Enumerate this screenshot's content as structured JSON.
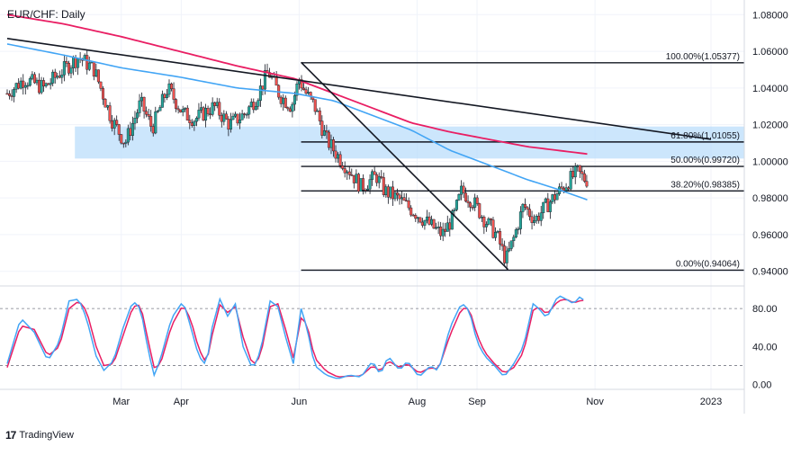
{
  "chart_data": {
    "type": "candlestick",
    "title": "EUR/CHF: Daily",
    "price_axis": {
      "ylim": [
        0.932,
        1.088
      ],
      "ticks": [
        "1.08000",
        "1.06000",
        "1.04000",
        "1.02000",
        "1.00000",
        "0.98000",
        "0.96000",
        "0.94000"
      ],
      "tick_values": [
        1.08,
        1.06,
        1.04,
        1.02,
        1.0,
        0.98,
        0.96,
        0.94
      ]
    },
    "time_axis": {
      "labels": [
        "Mar",
        "Apr",
        "Jun",
        "Aug",
        "Sep",
        "Nov",
        "2023"
      ],
      "label_days": [
        60,
        91,
        152,
        213,
        244,
        305,
        365
      ],
      "start": "2022-01-01"
    },
    "colors": {
      "up": "#26a69a",
      "down": "#ef5350",
      "ma_fast": "#42a5f5",
      "ma_slow": "#e91e63",
      "trendline": "#131722",
      "zone": "#bbdefb",
      "stoch_k": "#42a5f5",
      "stoch_d": "#e91e63"
    },
    "candles_path": [
      [
        1,
        1.037
      ],
      [
        10,
        1.045
      ],
      [
        20,
        1.04
      ],
      [
        28,
        1.048
      ],
      [
        38,
        1.057
      ],
      [
        46,
        1.05
      ],
      [
        55,
        1.023
      ],
      [
        62,
        1.01
      ],
      [
        70,
        1.032
      ],
      [
        76,
        1.018
      ],
      [
        84,
        1.04
      ],
      [
        92,
        1.026
      ],
      [
        98,
        1.023
      ],
      [
        108,
        1.03
      ],
      [
        116,
        1.02
      ],
      [
        124,
        1.026
      ],
      [
        130,
        1.035
      ],
      [
        136,
        1.049
      ],
      [
        142,
        1.036
      ],
      [
        148,
        1.03
      ],
      [
        152,
        1.045
      ],
      [
        155,
        1.038
      ],
      [
        160,
        1.03
      ],
      [
        166,
        1.012
      ],
      [
        172,
        1.003
      ],
      [
        178,
        0.995
      ],
      [
        184,
        0.986
      ],
      [
        192,
        0.992
      ],
      [
        196,
        0.984
      ],
      [
        204,
        0.979
      ],
      [
        212,
        0.972
      ],
      [
        220,
        0.965
      ],
      [
        226,
        0.96
      ],
      [
        232,
        0.97
      ],
      [
        236,
        0.984
      ],
      [
        242,
        0.978
      ],
      [
        248,
        0.968
      ],
      [
        254,
        0.96
      ],
      [
        259,
        0.946
      ],
      [
        263,
        0.958
      ],
      [
        268,
        0.976
      ],
      [
        274,
        0.968
      ],
      [
        280,
        0.976
      ],
      [
        286,
        0.983
      ],
      [
        292,
        0.99
      ],
      [
        296,
        0.994
      ],
      [
        300,
        0.99
      ]
    ],
    "ma_fast_points": [
      [
        1,
        1.064
      ],
      [
        30,
        1.058
      ],
      [
        60,
        1.051
      ],
      [
        90,
        1.046
      ],
      [
        120,
        1.04
      ],
      [
        150,
        1.037
      ],
      [
        170,
        1.033
      ],
      [
        190,
        1.025
      ],
      [
        210,
        1.017
      ],
      [
        230,
        1.006
      ],
      [
        250,
        0.998
      ],
      [
        270,
        0.99
      ],
      [
        285,
        0.985
      ],
      [
        301,
        0.979
      ]
    ],
    "ma_slow_points": [
      [
        1,
        1.08
      ],
      [
        30,
        1.075
      ],
      [
        60,
        1.068
      ],
      [
        90,
        1.06
      ],
      [
        120,
        1.052
      ],
      [
        150,
        1.045
      ],
      [
        170,
        1.037
      ],
      [
        190,
        1.029
      ],
      [
        210,
        1.021
      ],
      [
        230,
        1.016
      ],
      [
        250,
        1.012
      ],
      [
        270,
        1.008
      ],
      [
        301,
        1.004
      ]
    ],
    "trendlines": [
      {
        "from": [
          1,
          1.067
        ],
        "to": [
          365,
          1.012
        ]
      },
      {
        "from": [
          153,
          1.054
        ],
        "to": [
          260,
          0.941
        ]
      }
    ],
    "fibonacci": {
      "start_day": 153,
      "levels": [
        {
          "label": "100.00%(1.05377)",
          "value": 1.05377
        },
        {
          "label": "61.80%(1.01055)",
          "value": 1.01055
        },
        {
          "label": "50.00%(0.99720)",
          "value": 0.9972
        },
        {
          "label": "38.20%(0.98385)",
          "value": 0.98385
        },
        {
          "label": "0.00%(0.94064)",
          "value": 0.94064
        }
      ]
    },
    "zone": {
      "from_day": 36,
      "to_day": 365,
      "low": 1.0015,
      "high": 1.019
    },
    "stochastic": {
      "ylim": [
        -5,
        100
      ],
      "ticks": [
        "80.00",
        "40.00",
        "0.00"
      ],
      "tick_values": [
        80,
        40,
        0
      ],
      "levels": [
        80,
        20
      ],
      "k_points": [
        [
          1,
          22
        ],
        [
          8,
          70
        ],
        [
          15,
          55
        ],
        [
          22,
          25
        ],
        [
          28,
          45
        ],
        [
          33,
          88
        ],
        [
          38,
          90
        ],
        [
          42,
          70
        ],
        [
          47,
          30
        ],
        [
          51,
          15
        ],
        [
          56,
          25
        ],
        [
          61,
          60
        ],
        [
          66,
          88
        ],
        [
          70,
          80
        ],
        [
          74,
          35
        ],
        [
          77,
          10
        ],
        [
          80,
          25
        ],
        [
          86,
          70
        ],
        [
          92,
          88
        ],
        [
          96,
          60
        ],
        [
          100,
          30
        ],
        [
          104,
          20
        ],
        [
          107,
          60
        ],
        [
          111,
          90
        ],
        [
          115,
          72
        ],
        [
          119,
          85
        ],
        [
          123,
          40
        ],
        [
          128,
          16
        ],
        [
          132,
          35
        ],
        [
          137,
          88
        ],
        [
          141,
          82
        ],
        [
          145,
          50
        ],
        [
          149,
          22
        ],
        [
          153,
          80
        ],
        [
          156,
          60
        ],
        [
          160,
          20
        ],
        [
          166,
          10
        ],
        [
          172,
          6
        ],
        [
          178,
          10
        ],
        [
          184,
          8
        ],
        [
          190,
          25
        ],
        [
          194,
          10
        ],
        [
          198,
          30
        ],
        [
          204,
          15
        ],
        [
          208,
          25
        ],
        [
          214,
          8
        ],
        [
          220,
          20
        ],
        [
          224,
          14
        ],
        [
          230,
          60
        ],
        [
          236,
          86
        ],
        [
          240,
          78
        ],
        [
          244,
          45
        ],
        [
          248,
          30
        ],
        [
          253,
          20
        ],
        [
          258,
          8
        ],
        [
          263,
          22
        ],
        [
          268,
          40
        ],
        [
          273,
          85
        ],
        [
          276,
          80
        ],
        [
          280,
          70
        ],
        [
          286,
          94
        ],
        [
          290,
          90
        ],
        [
          294,
          85
        ],
        [
          297,
          92
        ],
        [
          300,
          88
        ]
      ],
      "d_points": [
        [
          1,
          18
        ],
        [
          8,
          62
        ],
        [
          15,
          58
        ],
        [
          22,
          30
        ],
        [
          28,
          40
        ],
        [
          33,
          80
        ],
        [
          38,
          88
        ],
        [
          42,
          78
        ],
        [
          47,
          40
        ],
        [
          51,
          20
        ],
        [
          56,
          22
        ],
        [
          61,
          52
        ],
        [
          66,
          82
        ],
        [
          70,
          84
        ],
        [
          74,
          45
        ],
        [
          77,
          18
        ],
        [
          80,
          20
        ],
        [
          86,
          62
        ],
        [
          92,
          84
        ],
        [
          96,
          68
        ],
        [
          100,
          38
        ],
        [
          104,
          22
        ],
        [
          107,
          52
        ],
        [
          111,
          84
        ],
        [
          115,
          76
        ],
        [
          119,
          82
        ],
        [
          123,
          50
        ],
        [
          128,
          20
        ],
        [
          132,
          30
        ],
        [
          137,
          82
        ],
        [
          141,
          85
        ],
        [
          145,
          58
        ],
        [
          149,
          28
        ],
        [
          153,
          70
        ],
        [
          156,
          64
        ],
        [
          160,
          28
        ],
        [
          166,
          14
        ],
        [
          172,
          8
        ],
        [
          178,
          9
        ],
        [
          184,
          9
        ],
        [
          190,
          20
        ],
        [
          194,
          14
        ],
        [
          198,
          25
        ],
        [
          204,
          18
        ],
        [
          208,
          22
        ],
        [
          214,
          12
        ],
        [
          220,
          18
        ],
        [
          224,
          16
        ],
        [
          230,
          52
        ],
        [
          236,
          80
        ],
        [
          240,
          80
        ],
        [
          244,
          52
        ],
        [
          248,
          34
        ],
        [
          253,
          22
        ],
        [
          258,
          12
        ],
        [
          263,
          18
        ],
        [
          268,
          34
        ],
        [
          273,
          78
        ],
        [
          276,
          82
        ],
        [
          280,
          74
        ],
        [
          286,
          88
        ],
        [
          290,
          90
        ],
        [
          294,
          86
        ],
        [
          297,
          88
        ],
        [
          300,
          89
        ]
      ]
    }
  },
  "branding": {
    "name": "TradingView",
    "logo": "17"
  }
}
